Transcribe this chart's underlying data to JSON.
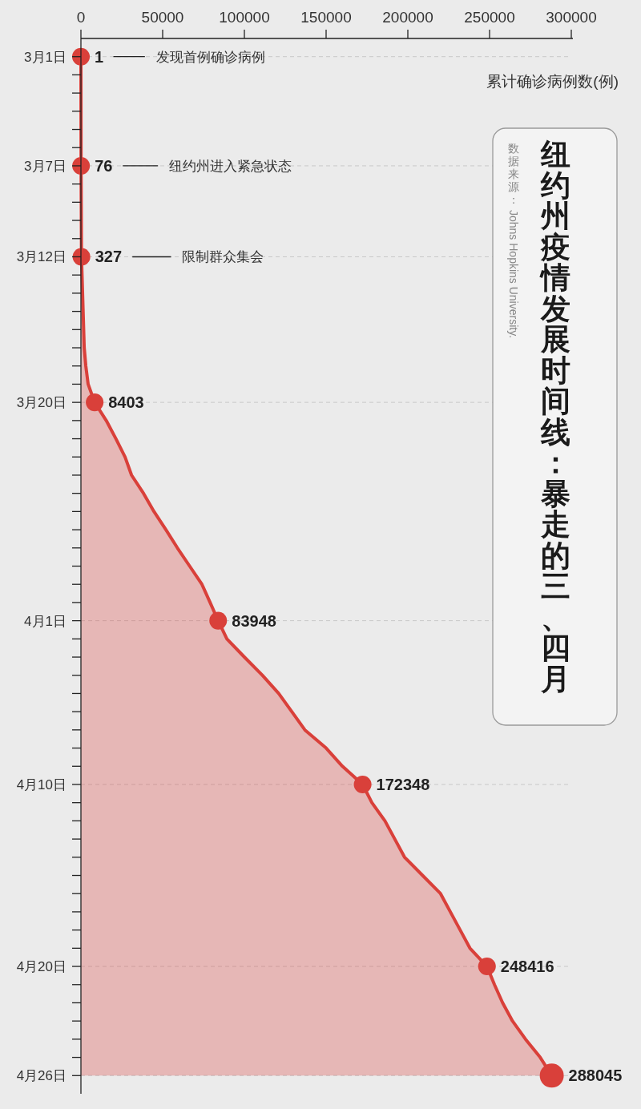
{
  "chart_data": {
    "type": "area",
    "orientation": "horizontal",
    "title": "纽约州疫情发展时间线：暴走的三、四月",
    "xlabel": "累计确诊病例数(例)",
    "annotations": [
      {
        "text": "发现首例确诊病例",
        "x": 46000,
        "y": "--03-01"
      },
      {
        "text": "纽约州进入紧急状态",
        "x": 54000,
        "y": "--03-07"
      },
      {
        "text": "限制群众集会",
        "x": 62000,
        "y": "--03-12"
      },
      "数据来源：Johns Hopkins University."
    ],
    "xlim": [
      0,
      300000
    ],
    "xticks": [
      0,
      50000,
      100000,
      150000,
      200000,
      250000,
      300000
    ],
    "ylim": [
      "--04-27",
      "--02-29"
    ],
    "yticks": [
      {
        "value": "--03-01",
        "label": "3月1日"
      },
      {
        "value": "--03-02",
        "label": null
      },
      {
        "value": "--03-03",
        "label": null
      },
      {
        "value": "--03-04",
        "label": null
      },
      {
        "value": "--03-05",
        "label": null
      },
      {
        "value": "--03-06",
        "label": null
      },
      {
        "value": "--03-07",
        "label": "3月7日"
      },
      {
        "value": "--03-08",
        "label": null
      },
      {
        "value": "--03-09",
        "label": null
      },
      {
        "value": "--03-10",
        "label": null
      },
      {
        "value": "--03-11",
        "label": null
      },
      {
        "value": "--03-12",
        "label": "3月12日"
      },
      {
        "value": "--03-13",
        "label": null
      },
      {
        "value": "--03-14",
        "label": null
      },
      {
        "value": "--03-15",
        "label": null
      },
      {
        "value": "--03-16",
        "label": null
      },
      {
        "value": "--03-17",
        "label": null
      },
      {
        "value": "--03-18",
        "label": null
      },
      {
        "value": "--03-19",
        "label": null
      },
      {
        "value": "--03-20",
        "label": "3月20日"
      },
      {
        "value": "--03-21",
        "label": null
      },
      {
        "value": "--03-22",
        "label": null
      },
      {
        "value": "--03-23",
        "label": null
      },
      {
        "value": "--03-24",
        "label": null
      },
      {
        "value": "--03-25",
        "label": null
      },
      {
        "value": "--03-26",
        "label": null
      },
      {
        "value": "--03-27",
        "label": null
      },
      {
        "value": "--03-28",
        "label": null
      },
      {
        "value": "--03-29",
        "label": null
      },
      {
        "value": "--03-30",
        "label": null
      },
      {
        "value": "--03-31",
        "label": null
      },
      {
        "value": "--04-01",
        "label": "4月1日"
      },
      {
        "value": "--04-02",
        "label": null
      },
      {
        "value": "--04-03",
        "label": null
      },
      {
        "value": "--04-04",
        "label": null
      },
      {
        "value": "--04-05",
        "label": null
      },
      {
        "value": "--04-06",
        "label": null
      },
      {
        "value": "--04-07",
        "label": null
      },
      {
        "value": "--04-08",
        "label": null
      },
      {
        "value": "--04-09",
        "label": null
      },
      {
        "value": "--04-10",
        "label": "4月10日"
      },
      {
        "value": "--04-11",
        "label": null
      },
      {
        "value": "--04-12",
        "label": null
      },
      {
        "value": "--04-13",
        "label": null
      },
      {
        "value": "--04-14",
        "label": null
      },
      {
        "value": "--04-15",
        "label": null
      },
      {
        "value": "--04-16",
        "label": null
      },
      {
        "value": "--04-17",
        "label": null
      },
      {
        "value": "--04-18",
        "label": null
      },
      {
        "value": "--04-19",
        "label": null
      },
      {
        "value": "--04-20",
        "label": "4月20日"
      },
      {
        "value": "--04-21",
        "label": null
      },
      {
        "value": "--04-22",
        "label": null
      },
      {
        "value": "--04-23",
        "label": null
      },
      {
        "value": "--04-24",
        "label": null
      },
      {
        "value": "--04-25",
        "label": null
      },
      {
        "value": "--04-26",
        "label": "4月26日"
      }
    ],
    "ref_lines": [
      {
        "axis": "y",
        "value": "--03-01",
        "color": "#c8c8c8",
        "line_style": "dashed"
      },
      {
        "axis": "y",
        "value": "--03-07",
        "color": "#c8c8c8",
        "line_style": "dashed"
      },
      {
        "axis": "y",
        "value": "--03-12",
        "color": "#c8c8c8",
        "line_style": "dashed"
      },
      {
        "axis": "y",
        "value": "--03-20",
        "color": "#c8c8c8",
        "line_style": "dashed"
      },
      {
        "axis": "y",
        "value": "--04-01",
        "color": "#c8c8c8",
        "line_style": "dashed"
      },
      {
        "axis": "y",
        "value": "--04-10",
        "color": "#c8c8c8",
        "line_style": "dashed"
      },
      {
        "axis": "y",
        "value": "--04-20",
        "color": "#c8c8c8",
        "line_style": "dashed"
      },
      {
        "axis": "y",
        "value": "--04-26",
        "color": "#c8c8c8",
        "line_style": "dashed"
      }
    ],
    "series": [
      {
        "color": "#d9403a",
        "marker": "none",
        "x": [
          "--03-01",
          "--03-07",
          "--03-12",
          "--03-17",
          "--03-18",
          "--03-19",
          "--03-20",
          "--03-21",
          "--03-22",
          "--03-23",
          "--03-24",
          "--03-25",
          "--03-26",
          "--03-27",
          "--03-28",
          "--03-29",
          "--03-30",
          "--03-31",
          "--04-01",
          "--04-02",
          "--04-03",
          "--04-04",
          "--04-05",
          "--04-06",
          "--04-07",
          "--04-08",
          "--04-09",
          "--04-10",
          "--04-11",
          "--04-12",
          "--04-13",
          "--04-14",
          "--04-15",
          "--04-16",
          "--04-17",
          "--04-18",
          "--04-19",
          "--04-20",
          "--04-21",
          "--04-22",
          "--04-23",
          "--04-24",
          "--04-25",
          "--04-26"
        ],
        "values": [
          1,
          76,
          327,
          2000,
          3000,
          4400,
          8403,
          15500,
          21400,
          27000,
          31000,
          38300,
          44700,
          52000,
          59000,
          66500,
          74000,
          79000,
          83948,
          89300,
          100000,
          111000,
          121000,
          129000,
          137000,
          150000,
          160000,
          172348,
          178000,
          186000,
          192000,
          198000,
          209000,
          220000,
          226000,
          232000,
          238000,
          248416,
          253000,
          258000,
          264000,
          272000,
          281000,
          288045
        ]
      },
      {
        "type": "scatter",
        "color": "#d9403a",
        "marker": "circle",
        "x": [
          "--03-01",
          "--03-07",
          "--03-12",
          "--03-20",
          "--04-01",
          "--04-10",
          "--04-20",
          "--04-26"
        ],
        "values": [
          1,
          76,
          327,
          8403,
          83948,
          172348,
          248416,
          288045
        ],
        "sizes": [
          0.54,
          0.54,
          0.54,
          0.54,
          0.54,
          0.54,
          0.54,
          1
        ],
        "value_labels": [
          "1",
          "76",
          "327",
          "8403",
          "83948",
          "172348",
          "248416",
          "288045"
        ]
      }
    ]
  }
}
